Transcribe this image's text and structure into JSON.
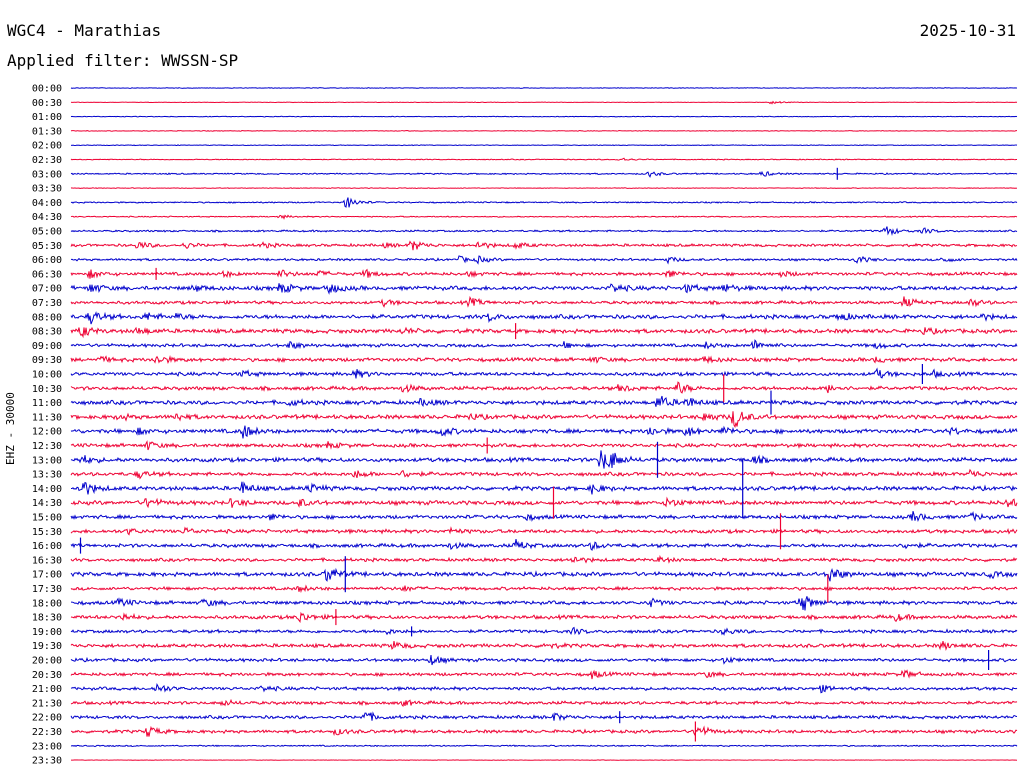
{
  "header": {
    "station": "WGC4 - Marathias",
    "date": "2025-10-31",
    "filter": "Applied filter: WWSSN-SP"
  },
  "channel": "EHZ - 30000",
  "colors": {
    "odd_trace": "#0000cc",
    "even_trace": "#ee0033",
    "text": "#000000",
    "background": "#ffffff"
  },
  "chart_data": {
    "type": "helicorder",
    "title": "WGC4 - Marathias",
    "date": "2025-10-31",
    "ylabel": "EHZ - 30000",
    "row_labels": [
      "00:00",
      "00:30",
      "01:00",
      "01:30",
      "02:00",
      "02:30",
      "03:00",
      "03:30",
      "04:00",
      "04:30",
      "05:00",
      "05:30",
      "06:00",
      "06:30",
      "07:00",
      "07:30",
      "08:00",
      "08:30",
      "09:00",
      "09:30",
      "10:00",
      "10:30",
      "11:00",
      "11:30",
      "12:00",
      "12:30",
      "13:00",
      "13:30",
      "14:00",
      "14:30",
      "15:00",
      "15:30",
      "16:00",
      "16:30",
      "17:00",
      "17:30",
      "18:00",
      "18:30",
      "19:00",
      "19:30",
      "20:00",
      "20:30",
      "21:00",
      "21:30",
      "22:00",
      "22:30",
      "23:00",
      "23:30"
    ],
    "row_noise": [
      0.3,
      0.2,
      0.3,
      0.3,
      0.3,
      0.4,
      0.6,
      0.3,
      0.6,
      0.5,
      0.8,
      1.2,
      1.0,
      1.4,
      1.8,
      1.4,
      1.8,
      1.8,
      1.4,
      1.6,
      1.6,
      1.6,
      1.8,
      1.8,
      1.8,
      1.6,
      1.8,
      1.6,
      1.8,
      1.8,
      1.6,
      1.6,
      1.6,
      1.4,
      1.8,
      1.4,
      1.6,
      1.6,
      1.4,
      1.6,
      1.4,
      1.4,
      1.4,
      1.4,
      1.4,
      1.4,
      0.6,
      0.2
    ],
    "events": [
      [
        1,
        0.74,
        2
      ],
      [
        5,
        0.58,
        2
      ],
      [
        6,
        0.61,
        3
      ],
      [
        6,
        0.73,
        3
      ],
      [
        8,
        0.29,
        7
      ],
      [
        9,
        0.22,
        2
      ],
      [
        10,
        0.86,
        6
      ],
      [
        10,
        0.9,
        3
      ],
      [
        11,
        0.07,
        4
      ],
      [
        11,
        0.12,
        3
      ],
      [
        11,
        0.2,
        3
      ],
      [
        11,
        0.33,
        2
      ],
      [
        11,
        0.36,
        6
      ],
      [
        11,
        0.43,
        4
      ],
      [
        11,
        0.47,
        3
      ],
      [
        12,
        0.41,
        3
      ],
      [
        12,
        0.43,
        3
      ],
      [
        12,
        0.63,
        3
      ],
      [
        12,
        0.83,
        4
      ],
      [
        12,
        0.92,
        3
      ],
      [
        13,
        0.02,
        4
      ],
      [
        13,
        0.16,
        3
      ],
      [
        13,
        0.22,
        4
      ],
      [
        13,
        0.26,
        3
      ],
      [
        13,
        0.31,
        4
      ],
      [
        13,
        0.42,
        2
      ],
      [
        13,
        0.63,
        4
      ],
      [
        13,
        0.75,
        3
      ],
      [
        14,
        0.02,
        5
      ],
      [
        14,
        0.13,
        3
      ],
      [
        14,
        0.22,
        6
      ],
      [
        14,
        0.27,
        7
      ],
      [
        14,
        0.57,
        5
      ],
      [
        14,
        0.65,
        4
      ],
      [
        14,
        0.69,
        4
      ],
      [
        15,
        0.33,
        3
      ],
      [
        15,
        0.42,
        5
      ],
      [
        15,
        0.88,
        5
      ],
      [
        15,
        0.95,
        4
      ],
      [
        16,
        0.02,
        7
      ],
      [
        16,
        0.08,
        4
      ],
      [
        16,
        0.11,
        3
      ],
      [
        16,
        0.44,
        4
      ],
      [
        16,
        0.81,
        5
      ],
      [
        16,
        0.96,
        3
      ],
      [
        17,
        0.01,
        6
      ],
      [
        17,
        0.07,
        4
      ],
      [
        17,
        0.35,
        3
      ],
      [
        17,
        0.9,
        3
      ],
      [
        18,
        0.23,
        4
      ],
      [
        18,
        0.52,
        3
      ],
      [
        18,
        0.72,
        6
      ],
      [
        18,
        0.67,
        3
      ],
      [
        18,
        0.85,
        3
      ],
      [
        19,
        0.03,
        3
      ],
      [
        19,
        0.09,
        5
      ],
      [
        19,
        0.55,
        3
      ],
      [
        19,
        0.67,
        3
      ],
      [
        19,
        0.85,
        3
      ],
      [
        20,
        0.18,
        3
      ],
      [
        20,
        0.3,
        4
      ],
      [
        20,
        0.85,
        5
      ],
      [
        20,
        0.91,
        3
      ],
      [
        21,
        0.35,
        4
      ],
      [
        21,
        0.58,
        4
      ],
      [
        21,
        0.64,
        7
      ],
      [
        21,
        0.8,
        4
      ],
      [
        22,
        0.23,
        3
      ],
      [
        22,
        0.37,
        4
      ],
      [
        22,
        0.62,
        8
      ],
      [
        22,
        0.65,
        5
      ],
      [
        23,
        0.05,
        3
      ],
      [
        23,
        0.11,
        4
      ],
      [
        23,
        0.42,
        3
      ],
      [
        23,
        0.67,
        5
      ],
      [
        23,
        0.7,
        12
      ],
      [
        24,
        0.07,
        3
      ],
      [
        24,
        0.18,
        8
      ],
      [
        24,
        0.39,
        5
      ],
      [
        24,
        0.61,
        5
      ],
      [
        24,
        0.65,
        5
      ],
      [
        24,
        0.69,
        4
      ],
      [
        24,
        0.93,
        3
      ],
      [
        25,
        0.08,
        4
      ],
      [
        25,
        0.27,
        3
      ],
      [
        26,
        0.01,
        5
      ],
      [
        26,
        0.56,
        12
      ],
      [
        26,
        0.57,
        6
      ],
      [
        26,
        0.72,
        4
      ],
      [
        27,
        0.07,
        4
      ],
      [
        27,
        0.3,
        4
      ],
      [
        27,
        0.35,
        4
      ],
      [
        27,
        0.95,
        4
      ],
      [
        28,
        0.01,
        10
      ],
      [
        28,
        0.18,
        6
      ],
      [
        28,
        0.25,
        5
      ],
      [
        28,
        0.55,
        5
      ],
      [
        29,
        0.08,
        5
      ],
      [
        29,
        0.17,
        4
      ],
      [
        29,
        0.24,
        4
      ],
      [
        29,
        0.63,
        5
      ],
      [
        29,
        0.99,
        5
      ],
      [
        30,
        0.21,
        3
      ],
      [
        30,
        0.48,
        3
      ],
      [
        30,
        0.89,
        5
      ],
      [
        30,
        0.95,
        4
      ],
      [
        31,
        0.06,
        3
      ],
      [
        31,
        0.12,
        3
      ],
      [
        31,
        0.4,
        3
      ],
      [
        32,
        0.4,
        3
      ],
      [
        32,
        0.47,
        5
      ],
      [
        32,
        0.55,
        4
      ],
      [
        32,
        0.88,
        3
      ],
      [
        33,
        0.53,
        4
      ],
      [
        33,
        0.62,
        3
      ],
      [
        34,
        0.27,
        9
      ],
      [
        34,
        0.8,
        10
      ],
      [
        34,
        0.97,
        3
      ],
      [
        35,
        0.24,
        3
      ],
      [
        35,
        0.35,
        3
      ],
      [
        36,
        0.05,
        4
      ],
      [
        36,
        0.14,
        4
      ],
      [
        36,
        0.61,
        5
      ],
      [
        36,
        0.77,
        12
      ],
      [
        37,
        0.05,
        5
      ],
      [
        37,
        0.24,
        6
      ],
      [
        37,
        0.87,
        4
      ],
      [
        38,
        0.33,
        3
      ],
      [
        38,
        0.53,
        3
      ],
      [
        38,
        0.69,
        3
      ],
      [
        39,
        0.34,
        4
      ],
      [
        39,
        0.5,
        3
      ],
      [
        39,
        0.92,
        4
      ],
      [
        40,
        0.38,
        5
      ],
      [
        40,
        0.69,
        3
      ],
      [
        41,
        0.55,
        4
      ],
      [
        41,
        0.67,
        3
      ],
      [
        41,
        0.88,
        4
      ],
      [
        42,
        0.09,
        5
      ],
      [
        42,
        0.2,
        3
      ],
      [
        42,
        0.79,
        4
      ],
      [
        43,
        0.16,
        3
      ],
      [
        43,
        0.35,
        3
      ],
      [
        44,
        0.31,
        6
      ],
      [
        44,
        0.51,
        4
      ],
      [
        45,
        0.08,
        6
      ],
      [
        45,
        0.28,
        3
      ],
      [
        45,
        0.66,
        8
      ]
    ],
    "spikes": [
      [
        6,
        0.81,
        6
      ],
      [
        13,
        0.09,
        6
      ],
      [
        17,
        0.47,
        8
      ],
      [
        20,
        0.9,
        10
      ],
      [
        21,
        0.69,
        14
      ],
      [
        22,
        0.74,
        12
      ],
      [
        25,
        0.44,
        8
      ],
      [
        26,
        0.62,
        18
      ],
      [
        28,
        0.71,
        30
      ],
      [
        29,
        0.51,
        16
      ],
      [
        31,
        0.75,
        18
      ],
      [
        32,
        0.01,
        8
      ],
      [
        34,
        0.29,
        18
      ],
      [
        35,
        0.8,
        14
      ],
      [
        37,
        0.28,
        8
      ],
      [
        38,
        0.36,
        5
      ],
      [
        40,
        0.97,
        10
      ],
      [
        44,
        0.58,
        6
      ],
      [
        45,
        0.66,
        10
      ]
    ]
  }
}
